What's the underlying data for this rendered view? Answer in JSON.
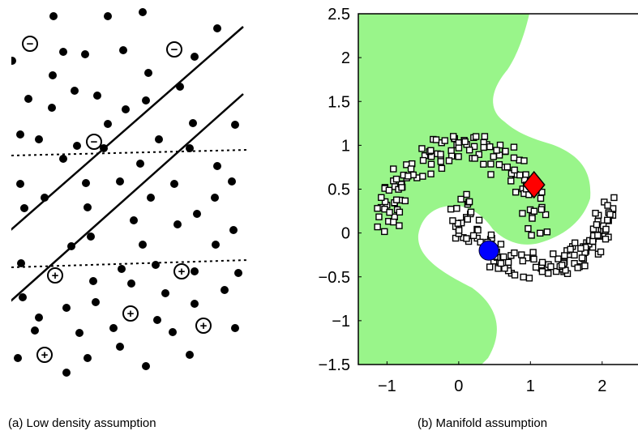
{
  "captions": {
    "left": "(a) Low density assumption",
    "right": "(b) Manifold assumption"
  },
  "colors": {
    "region": "#99f58a",
    "diamond": "#ff0000",
    "circle": "#0000ff",
    "ink": "#000000"
  },
  "left_panel": {
    "minus_symbol": "−",
    "plus_symbol": "+",
    "minus_count": 3,
    "plus_count": 5
  },
  "chart_data": {
    "type": "scatter",
    "xlim": [
      -1.4,
      2.5
    ],
    "ylim": [
      -1.5,
      2.5
    ],
    "xticks": [
      "−1",
      "0",
      "1",
      "2"
    ],
    "yticks": [
      "2.5",
      "2",
      "1.5",
      "1",
      "0.5",
      "0",
      "−0.5",
      "−1",
      "−1.5"
    ],
    "labeled_points": [
      {
        "marker": "diamond",
        "color": "#ff0000",
        "x": 1.05,
        "y": 0.55
      },
      {
        "marker": "circle",
        "color": "#0000ff",
        "x": 0.42,
        "y": -0.2
      }
    ],
    "unlabeled": {
      "marker": "square",
      "shape": "two interleaving half-moons"
    }
  }
}
